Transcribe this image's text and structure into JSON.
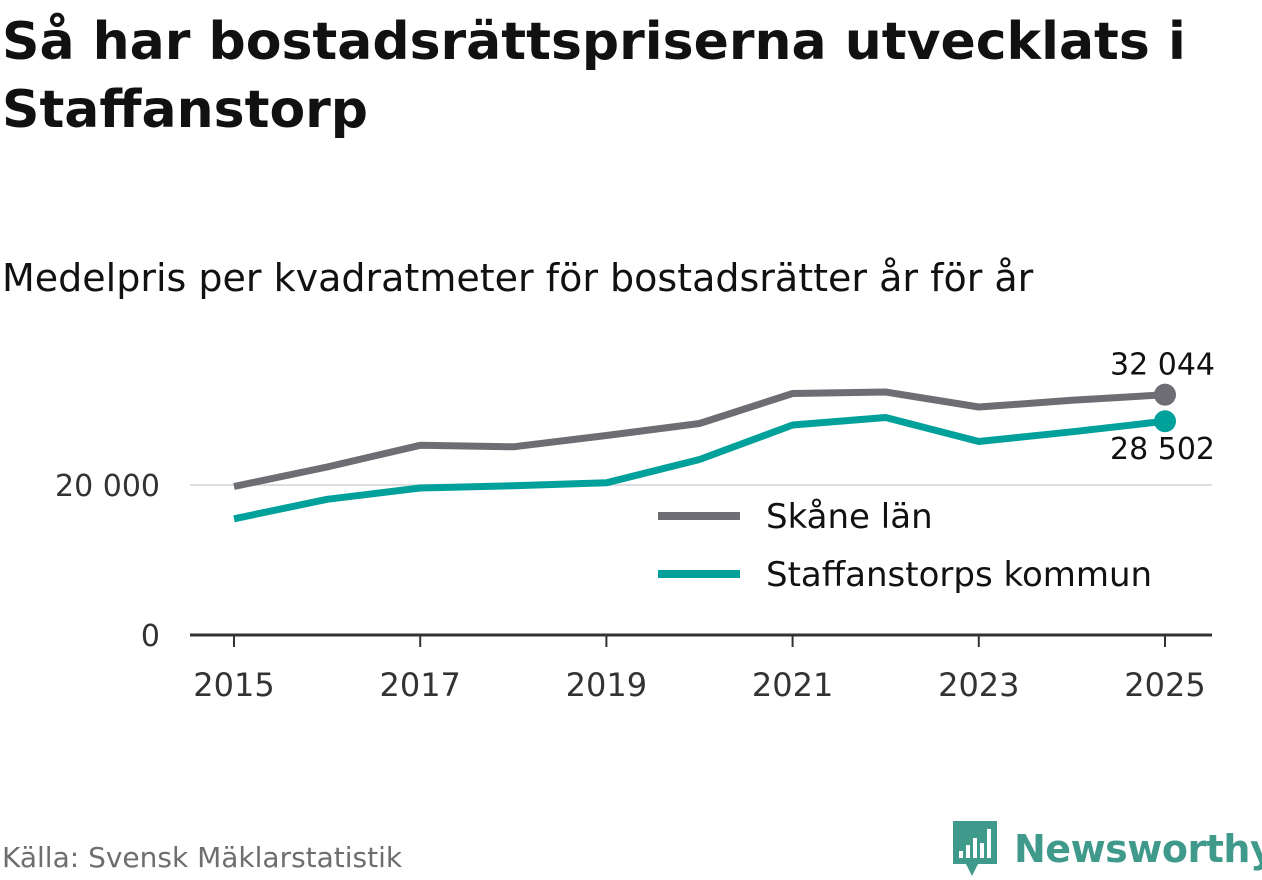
{
  "title": "Så har bostadsrättspriserna utvecklats i Staffanstorp",
  "subtitle": "Medelpris per kvadratmeter för bostadsrätter år för år",
  "source": "Källa: Svensk Mäklarstatistik",
  "brand": {
    "name": "Newsworthy",
    "icon": "newsworthy-logo-icon",
    "color": "#3f9a8c"
  },
  "chart_data": {
    "type": "line",
    "title": "Medelpris per kvadratmeter för bostadsrätter år för år",
    "xlabel": "",
    "ylabel": "",
    "x": [
      2015,
      2016,
      2017,
      2018,
      2019,
      2020,
      2021,
      2022,
      2023,
      2024,
      2025
    ],
    "x_ticks": [
      "2015",
      "2017",
      "2019",
      "2021",
      "2023",
      "2025"
    ],
    "y_ticks": [
      {
        "value": 0,
        "label": "0"
      },
      {
        "value": 20000,
        "label": "20 000"
      }
    ],
    "ylim": [
      0,
      33000
    ],
    "grid": "horizontal",
    "legend_position": "center-right",
    "series": [
      {
        "name": "Skåne län",
        "color": "#6e6d73",
        "values": [
          19800,
          22400,
          25300,
          25100,
          26600,
          28200,
          32200,
          32400,
          30400,
          31300,
          32044
        ],
        "end_label": "32 044",
        "end_label_position": "above"
      },
      {
        "name": "Staffanstorps kommun",
        "color": "#00a19a",
        "values": [
          15500,
          18100,
          19600,
          19900,
          20300,
          23400,
          28000,
          29000,
          25800,
          27100,
          28502
        ],
        "end_label": "28 502",
        "end_label_position": "below"
      }
    ]
  }
}
